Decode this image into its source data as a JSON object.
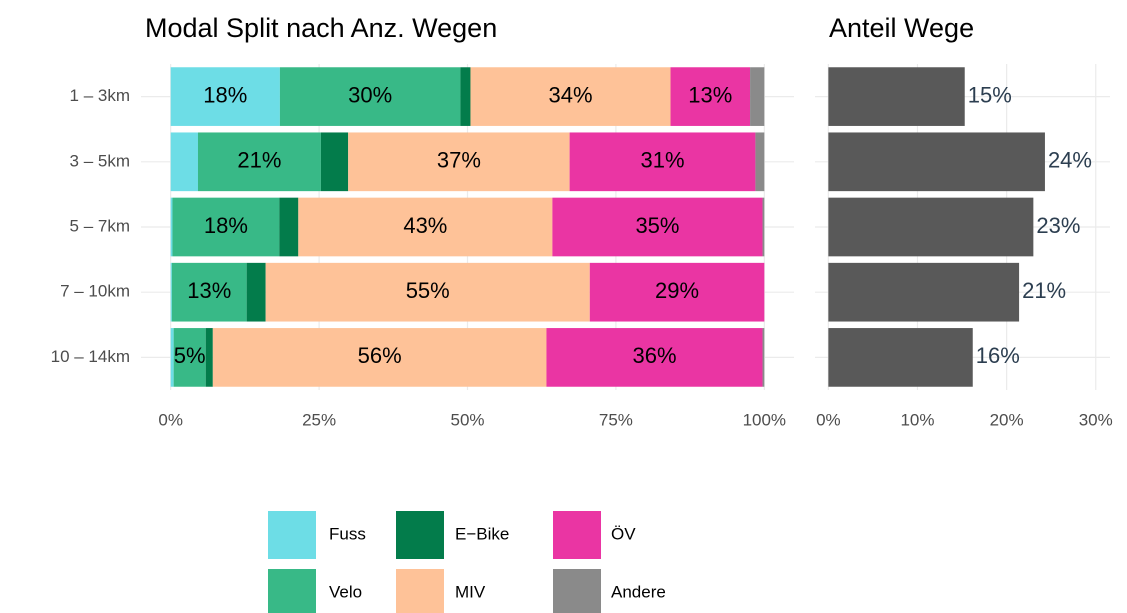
{
  "chart_data": [
    {
      "type": "bar",
      "orientation": "horizontal",
      "stacked": true,
      "title": "Modal Split nach Anz. Wegen",
      "categories": [
        "1 – 3km",
        "3 – 5km",
        "5 – 7km",
        "7 – 10km",
        "10 – 14km"
      ],
      "series": [
        {
          "name": "Fuss",
          "color": "#6ddde6",
          "values": [
            18.4,
            4.6,
            0.3,
            0.2,
            0.5
          ],
          "value_labels": [
            "18%",
            null,
            null,
            null,
            null
          ]
        },
        {
          "name": "Velo",
          "color": "#38b987",
          "values": [
            30.4,
            20.7,
            18.0,
            12.6,
            5.4
          ],
          "value_labels": [
            "30%",
            "21%",
            "18%",
            "13%",
            "5%"
          ]
        },
        {
          "name": "E−Bike",
          "color": "#037c4b",
          "values": [
            1.7,
            4.6,
            3.2,
            3.2,
            1.2
          ],
          "value_labels": [
            null,
            null,
            null,
            null,
            null
          ]
        },
        {
          "name": "MIV",
          "color": "#fec298",
          "values": [
            33.7,
            37.3,
            42.8,
            54.6,
            56.2
          ],
          "value_labels": [
            "34%",
            "37%",
            "43%",
            "55%",
            "56%"
          ]
        },
        {
          "name": "ÖV",
          "color": "#ea35a3",
          "values": [
            13.4,
            31.3,
            35.4,
            29.4,
            36.4
          ],
          "value_labels": [
            "13%",
            "31%",
            "35%",
            "29%",
            "36%"
          ]
        },
        {
          "name": "Andere",
          "color": "#8a8a8a",
          "values": [
            2.4,
            1.5,
            0.3,
            0,
            0.3
          ],
          "value_labels": [
            null,
            null,
            null,
            null,
            null
          ]
        }
      ],
      "xlim": [
        -5,
        105
      ],
      "xticks": [
        {
          "value": 0,
          "label": "0%"
        },
        {
          "value": 25,
          "label": "25%"
        },
        {
          "value": 50,
          "label": "50%"
        },
        {
          "value": 75,
          "label": "75%"
        },
        {
          "value": 100,
          "label": "100%"
        }
      ],
      "grid": true,
      "legend": "bottom"
    },
    {
      "type": "bar",
      "orientation": "horizontal",
      "stacked": false,
      "title": "Anteil Wege",
      "series": [
        {
          "color": "#595959",
          "values": [
            15.3,
            24.3,
            23.0,
            21.4,
            16.2
          ],
          "value_labels": [
            "15%",
            "24%",
            "23%",
            "21%",
            "16%"
          ]
        }
      ],
      "xlim": [
        -1.5,
        31.6
      ],
      "xticks": [
        {
          "value": 0,
          "label": "0%"
        },
        {
          "value": 10,
          "label": "10%"
        },
        {
          "value": 20,
          "label": "20%"
        },
        {
          "value": 30,
          "label": "30%"
        }
      ],
      "grid": true
    }
  ]
}
